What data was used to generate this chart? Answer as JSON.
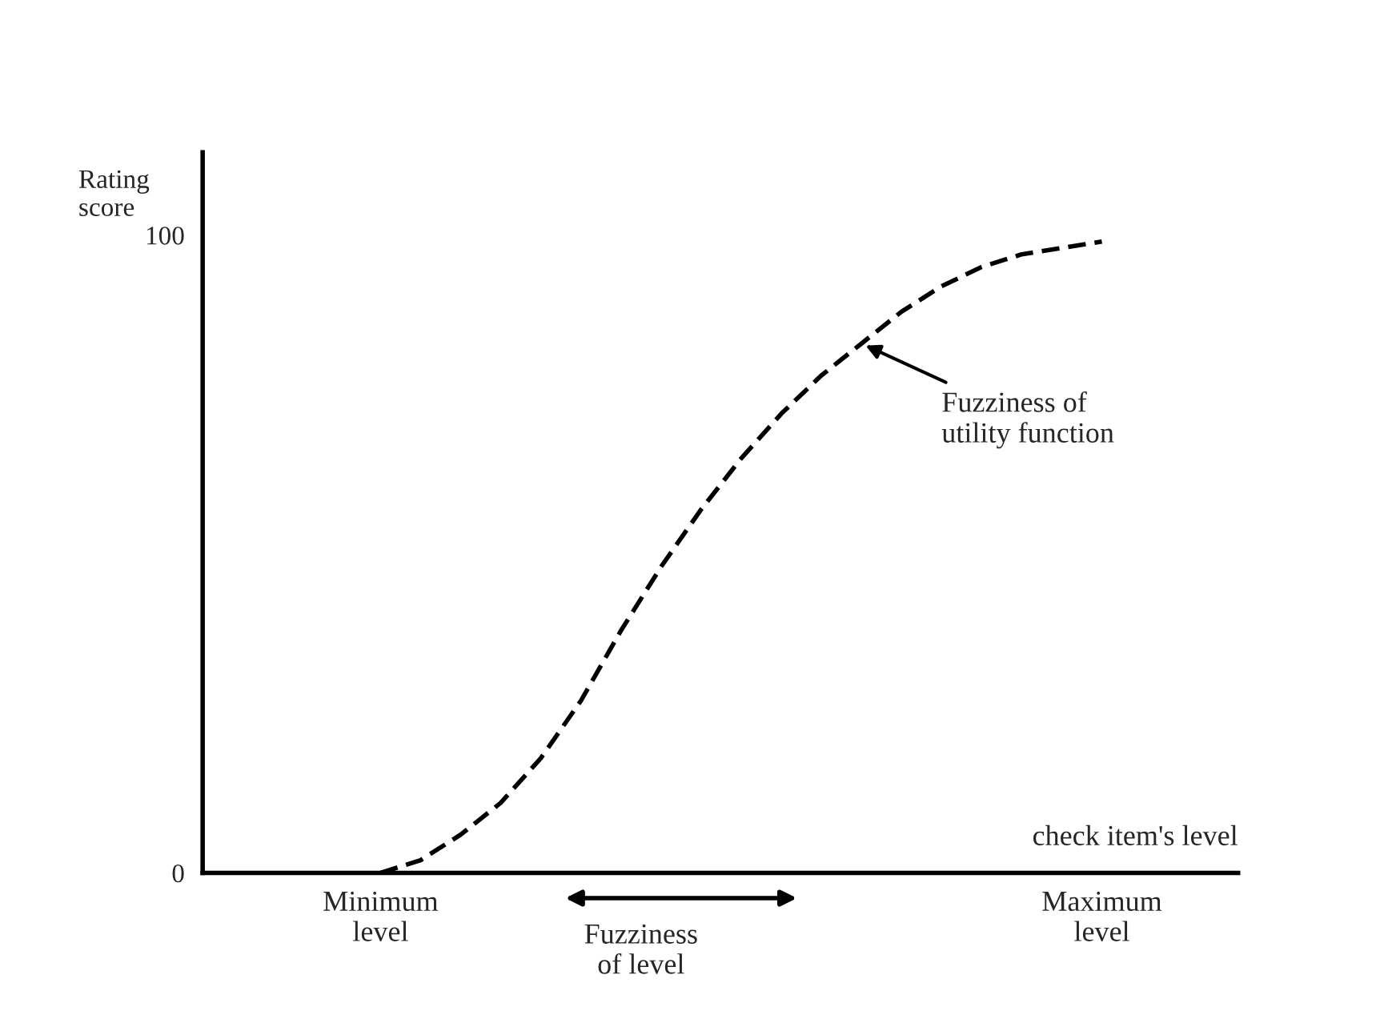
{
  "chart_data": {
    "type": "line",
    "xlabel": "check item's level",
    "ylabel": "Rating\nscore",
    "categories": [
      "Minimum level",
      null,
      null,
      null,
      null,
      null,
      null,
      null,
      null,
      null,
      null,
      null,
      null,
      null,
      null,
      null,
      null,
      null,
      "Maximum level"
    ],
    "series": [
      {
        "color": "#000000",
        "values": [
          0,
          2,
          6,
          11,
          18,
          27,
          38,
          48,
          57,
          65,
          72,
          78,
          83,
          88,
          92,
          95,
          97,
          98,
          99
        ]
      }
    ],
    "line_style": "dashed",
    "marker": "none",
    "ylim": [
      0,
      113
    ],
    "yticks": [
      0,
      100
    ],
    "grid": false,
    "legend": false,
    "annotations": [
      "Fuzziness of\nutility function",
      "Fuzziness\nof level"
    ]
  }
}
